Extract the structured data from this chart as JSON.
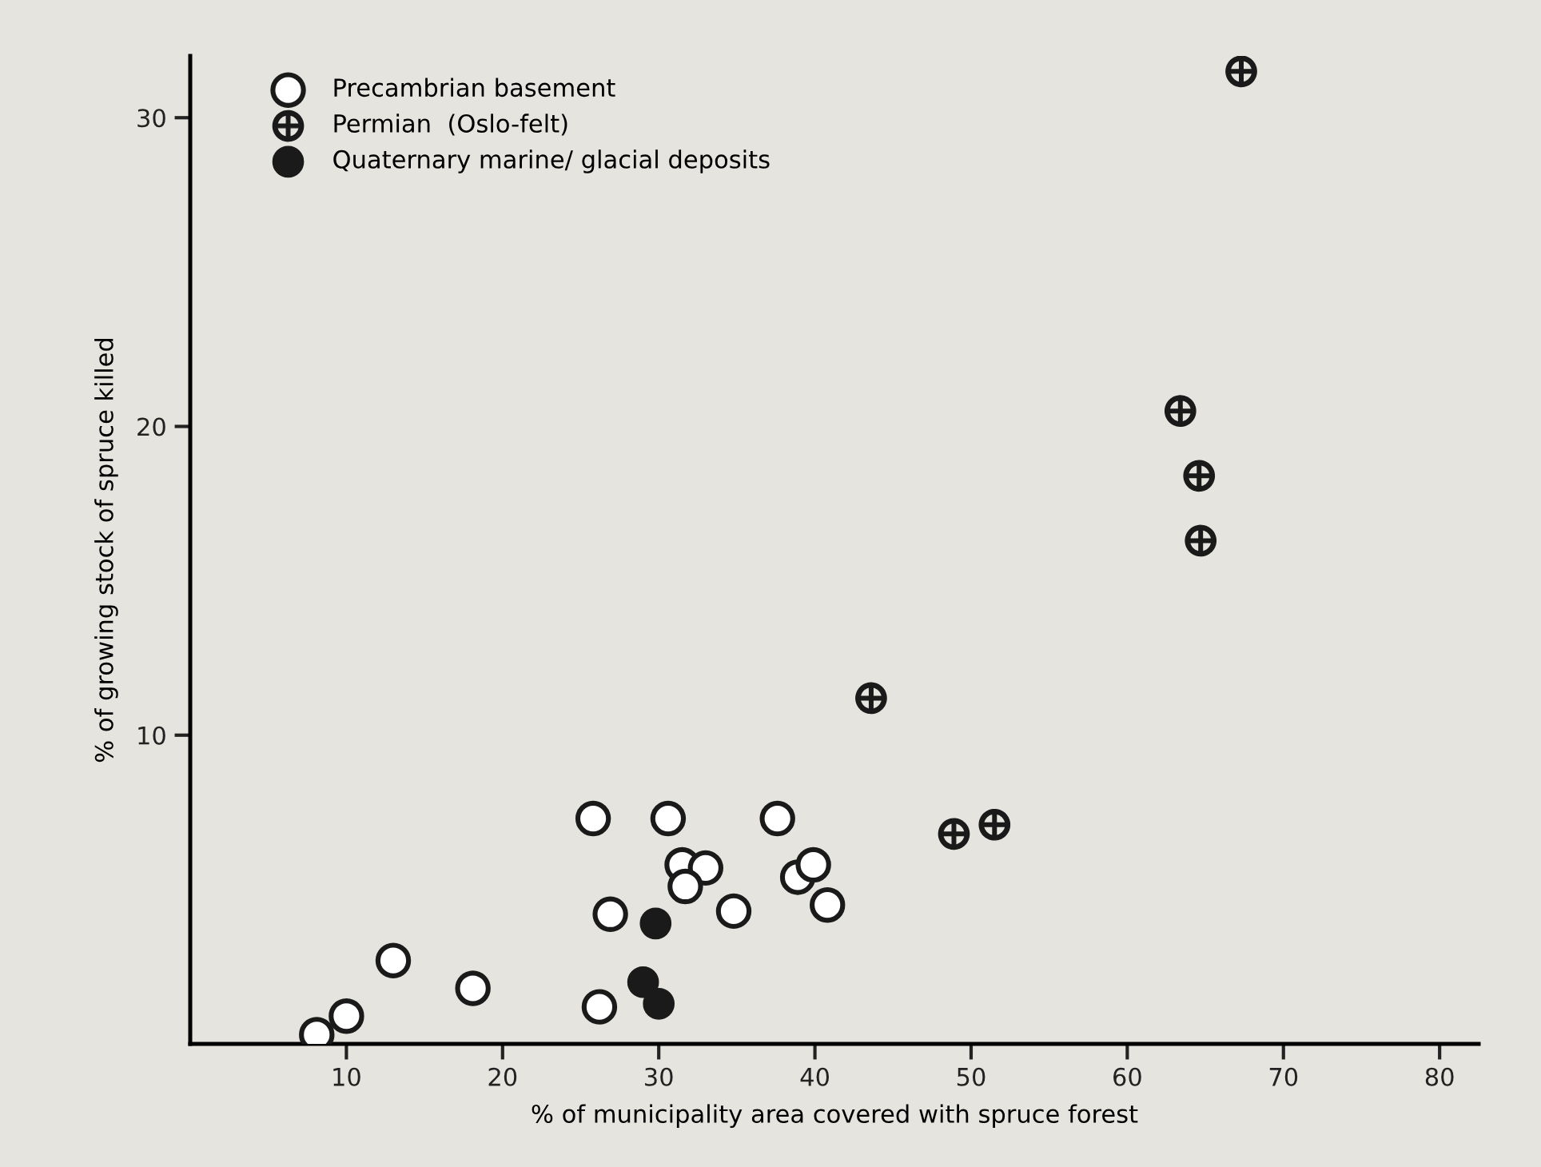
{
  "chart_data": {
    "type": "scatter",
    "xlabel": "% of municipality area covered with spruce forest",
    "ylabel": "% of growing stock of spruce killed",
    "xlim": [
      0,
      82.5
    ],
    "ylim": [
      0,
      32
    ],
    "xticks": [
      10,
      20,
      30,
      40,
      50,
      60,
      70,
      80
    ],
    "yticks": [
      10,
      20,
      30
    ],
    "legend": "top left",
    "grid": false,
    "series": [
      {
        "name": "Precambrian basement",
        "color": "#ffffff",
        "marker": "circle",
        "x": [
          8.1,
          10.0,
          13.0,
          18.1,
          25.8,
          26.2,
          26.9,
          30.6,
          31.5,
          33.0,
          31.7,
          34.8,
          37.6,
          38.9,
          39.9,
          40.8
        ],
        "values": [
          0.3,
          0.9,
          2.7,
          1.8,
          7.3,
          1.2,
          4.2,
          7.3,
          5.8,
          5.7,
          5.1,
          4.3,
          7.3,
          5.4,
          5.8,
          4.5
        ]
      },
      {
        "name": "Permian  (Oslo-felt)",
        "color": "#1a1a1a",
        "marker": "cross",
        "x": [
          67.3,
          63.4,
          64.6,
          64.7,
          43.6,
          48.9,
          51.5
        ],
        "values": [
          31.5,
          20.5,
          18.4,
          16.3,
          11.2,
          6.8,
          7.1
        ]
      },
      {
        "name": "Quaternary marine/ glacial deposits",
        "color": "#1a1a1a",
        "marker": "circle",
        "x": [
          29.8,
          29.0,
          30.0
        ],
        "values": [
          3.9,
          2.0,
          1.3
        ]
      }
    ]
  }
}
